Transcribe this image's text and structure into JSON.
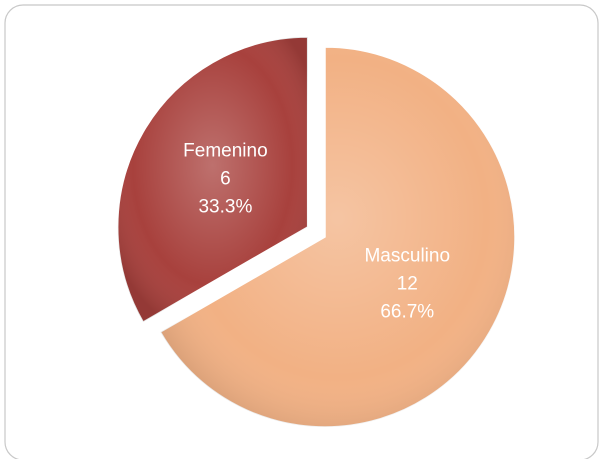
{
  "chart_data": {
    "type": "pie",
    "categories": [
      "Masculino",
      "Femenino"
    ],
    "values": [
      12,
      6
    ],
    "percent_labels": [
      "66.7%",
      "33.3%"
    ],
    "colors": [
      "#f2b184",
      "#a8413d"
    ]
  }
}
